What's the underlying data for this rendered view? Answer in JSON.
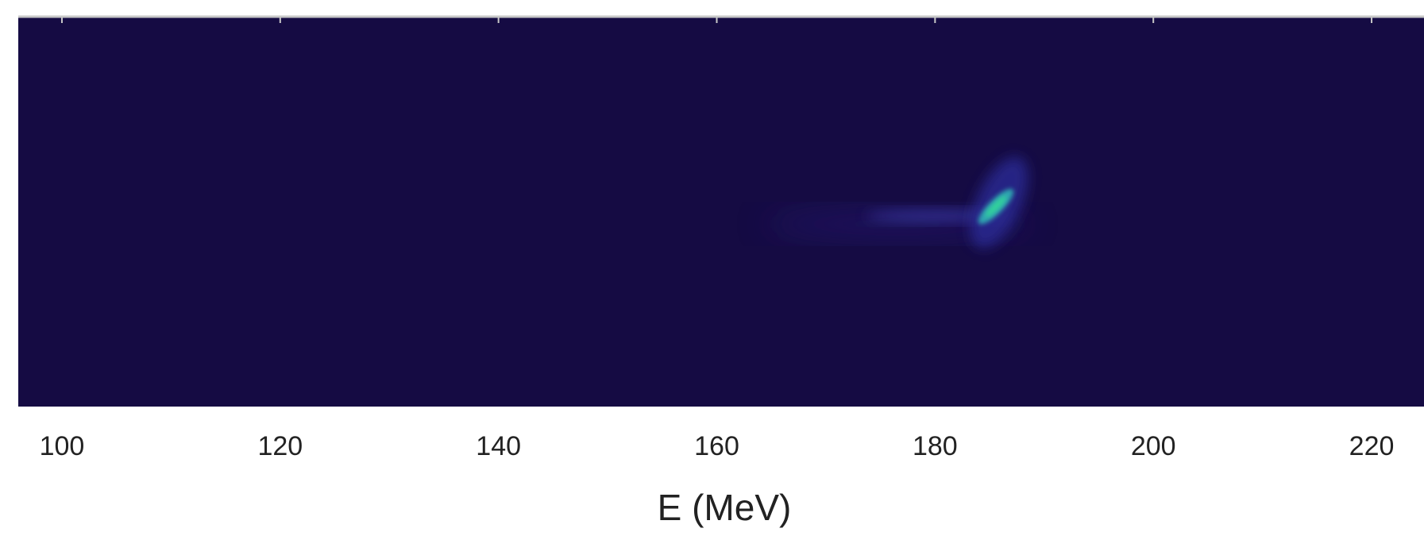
{
  "chart_data": {
    "type": "image",
    "xlabel": "E (MeV)",
    "xlim": [
      96,
      224.8
    ],
    "xticks": [
      100,
      120,
      140,
      160,
      180,
      200,
      220
    ]
  }
}
